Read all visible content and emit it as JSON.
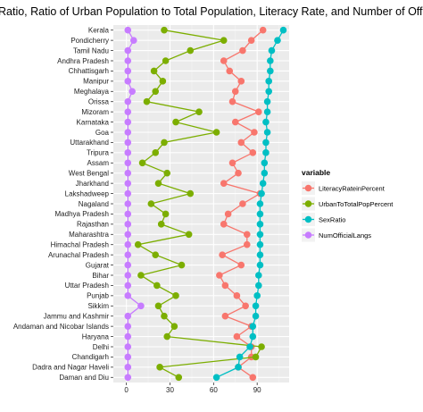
{
  "chart_data": {
    "type": "line",
    "title": "Ratio, Ratio of Urban Population to Total Population, Literacy Rate, and Number of Official Languages",
    "xlabel": "",
    "ylabel": "",
    "xlim": [
      -9,
      112
    ],
    "x_ticks": [
      0,
      30,
      60,
      90
    ],
    "grid": true,
    "legend_position": "right",
    "legend_title": "variable",
    "categories": [
      "Kerala",
      "Pondicherry",
      "Tamil Nadu",
      "Andhra Pradesh",
      "Chhattisgarh",
      "Manipur",
      "Meghalaya",
      "Orissa",
      "Mizoram",
      "Karnataka",
      "Goa",
      "Uttarakhand",
      "Tripura",
      "Assam",
      "West Bengal",
      "Jharkhand",
      "Lakshadweep",
      "Nagaland",
      "Madhya Pradesh",
      "Rajasthan",
      "Maharashtra",
      "Himachal Pradesh",
      "Arunachal Pradesh",
      "Gujarat",
      "Bihar",
      "Uttar Pradesh",
      "Punjab",
      "Sikkim",
      "Jammu and Kashmir",
      "Andaman and Nicobar Islands",
      "Haryana",
      "Delhi",
      "Chandigarh",
      "Dadra and Nagar Haveli",
      "Daman and Diu"
    ],
    "series": [
      {
        "name": "LiteracyRateinPercent",
        "color": "#F8766D",
        "values": [
          94,
          86,
          80,
          67,
          71,
          79,
          75,
          73,
          91,
          75,
          88,
          79,
          87,
          73,
          77,
          67,
          92,
          80,
          70,
          67,
          83,
          83,
          66,
          79,
          64,
          68,
          76,
          82,
          68,
          86,
          76,
          86,
          86,
          77,
          87
        ]
      },
      {
        "name": "UrbanToTotalPopPercent",
        "color": "#7CAE00",
        "values": [
          26,
          67,
          44,
          27,
          19,
          25,
          20,
          14,
          50,
          34,
          62,
          26,
          20,
          11,
          28,
          22,
          44,
          17,
          27,
          24,
          43,
          8,
          20,
          38,
          10,
          21,
          34,
          22,
          26,
          33,
          28,
          93,
          89,
          23,
          36
        ]
      },
      {
        "name": "SexRatio",
        "color": "#00BFC4",
        "values": [
          108,
          104,
          100,
          99,
          99,
          98,
          98,
          97,
          97,
          96,
          97,
          96,
          96,
          95,
          95,
          94,
          93,
          92,
          92,
          92,
          92,
          92,
          92,
          92,
          91,
          91,
          90,
          89,
          89,
          87,
          87,
          85,
          78,
          77,
          62
        ]
      },
      {
        "name": "NumOfficialLangs",
        "color": "#C77CFF",
        "values": [
          1,
          5,
          1,
          1,
          1,
          1,
          4,
          1,
          1,
          1,
          1,
          1,
          1,
          1,
          1,
          1,
          1,
          1,
          1,
          1,
          1,
          1,
          1,
          1,
          1,
          1,
          1,
          10,
          1,
          1,
          1,
          1,
          1,
          1,
          1
        ]
      }
    ]
  }
}
